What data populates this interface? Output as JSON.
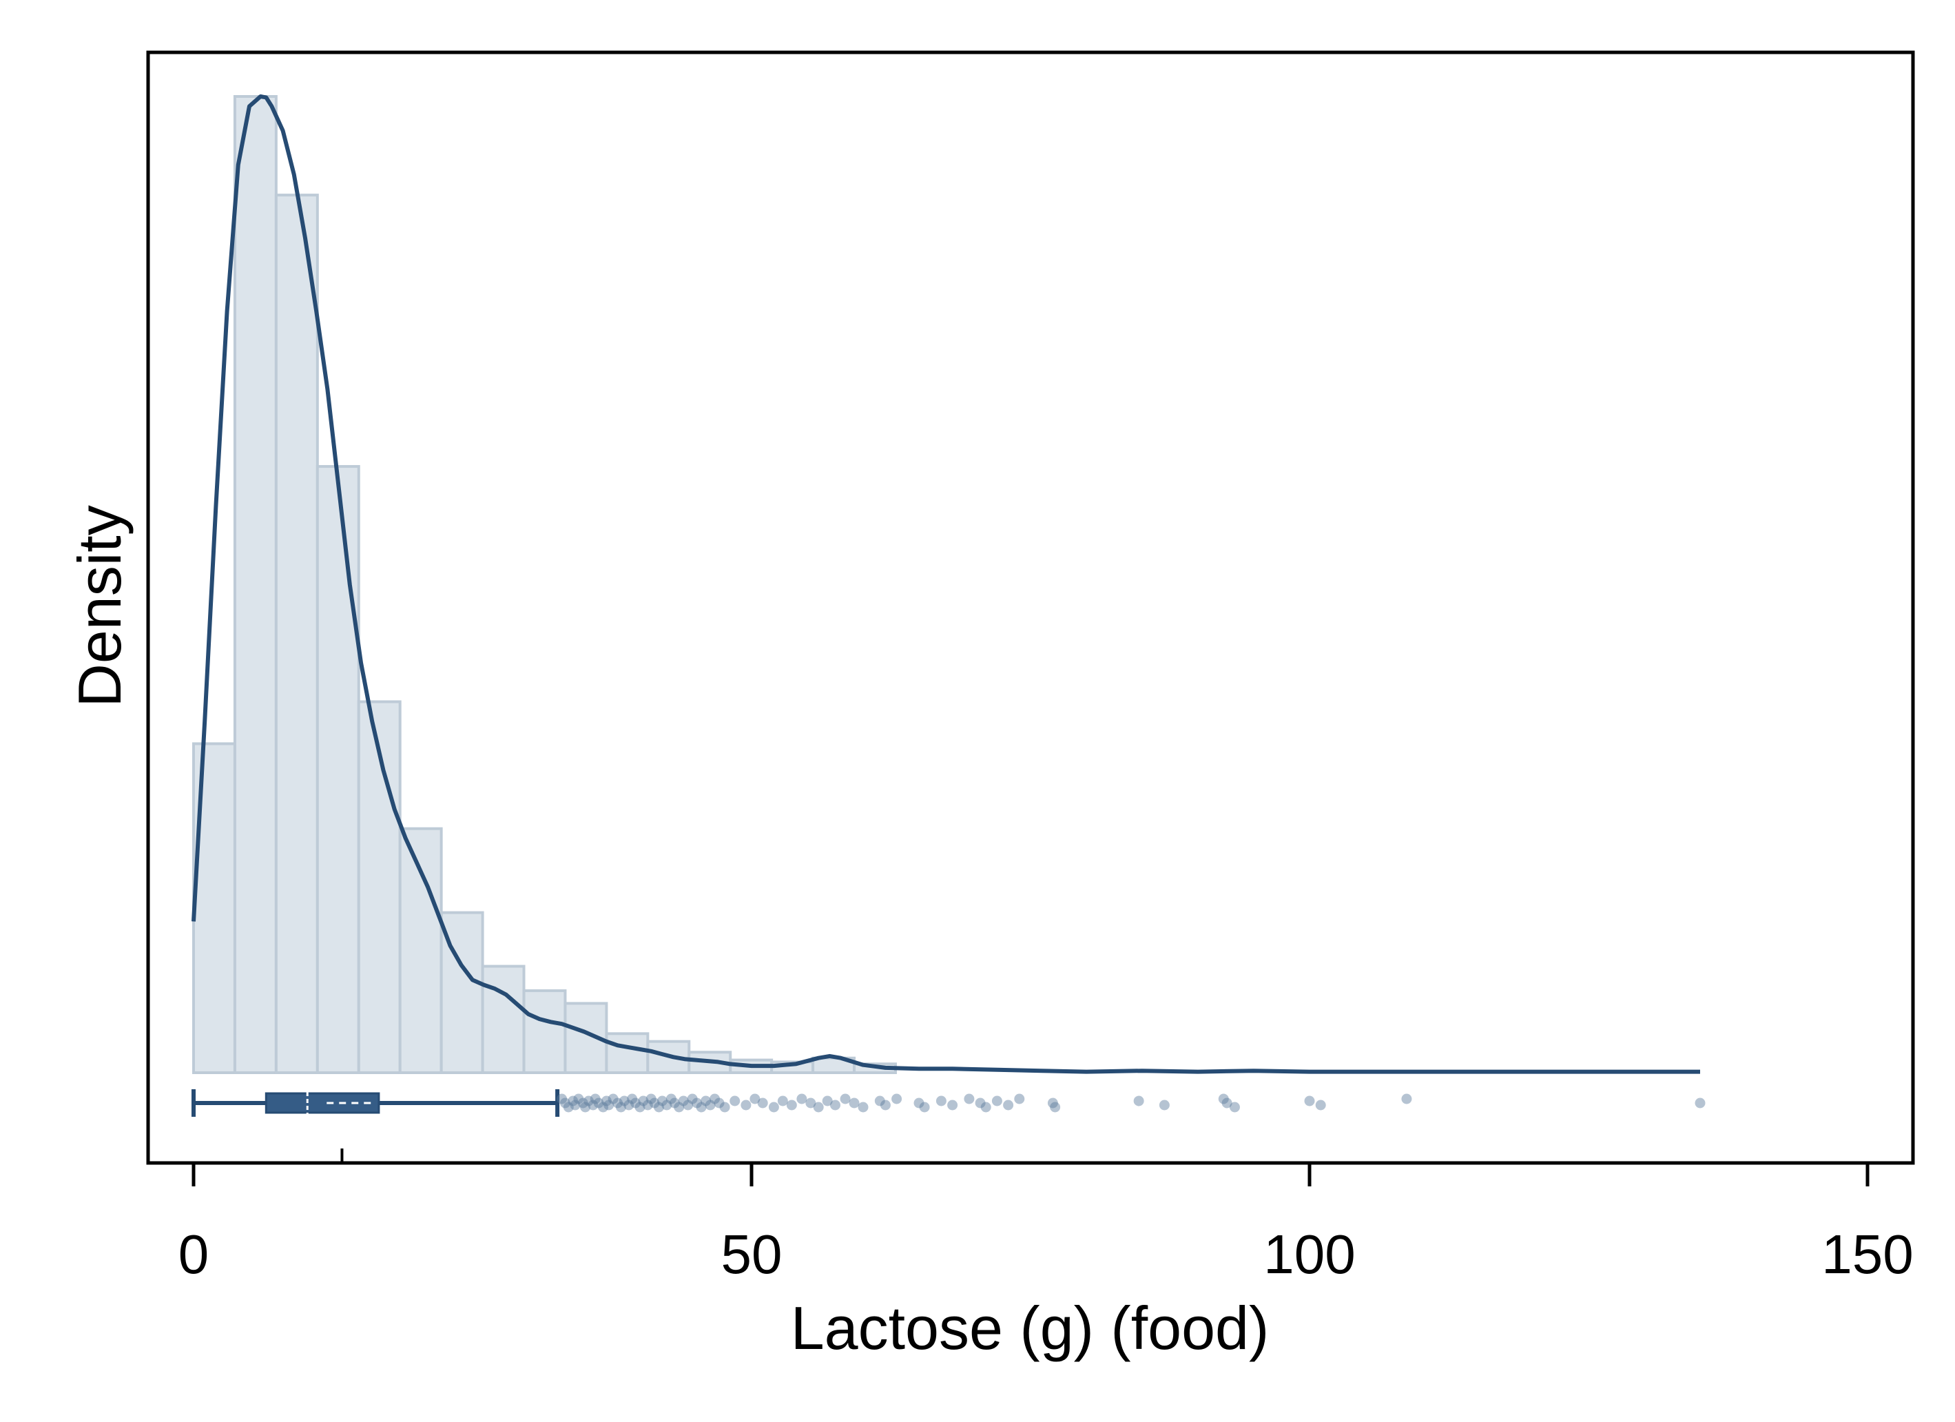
{
  "chart_data": {
    "type": "histogram",
    "title": "",
    "xlabel": "Lactose (g) (food)",
    "ylabel": "Density",
    "xlim": [
      -4,
      154
    ],
    "xticks": [
      0,
      50,
      100,
      150
    ],
    "xtick_labels": [
      "0",
      "50",
      "100",
      "150"
    ],
    "y_ticks_shown": false,
    "grid": false,
    "legend": "none",
    "histogram": {
      "bin_width": 3.7,
      "bin_starts": [
        0,
        3.7,
        7.4,
        11.1,
        14.8,
        18.5,
        22.2,
        25.9,
        29.6,
        33.3,
        37.0,
        40.7,
        44.4,
        48.1,
        51.8,
        55.5,
        59.2
      ],
      "relative_heights": [
        0.337,
        1.0,
        0.899,
        0.621,
        0.38,
        0.25,
        0.164,
        0.109,
        0.084,
        0.071,
        0.04,
        0.032,
        0.021,
        0.013,
        0.011,
        0.015,
        0.009
      ]
    },
    "density_curve": {
      "x": [
        0,
        1,
        2,
        3,
        4,
        5,
        6,
        6.5,
        7,
        8,
        9,
        10,
        11,
        12,
        13,
        14,
        15,
        16,
        17,
        18,
        19,
        20,
        21,
        22,
        23,
        24,
        25,
        26,
        27,
        28,
        29,
        30,
        31,
        32,
        33,
        34,
        35,
        36,
        37,
        38,
        39,
        40,
        41,
        42,
        43,
        44,
        45,
        46,
        47,
        48,
        50,
        52,
        54,
        56,
        57,
        58,
        60,
        62,
        65,
        68,
        72,
        76,
        80,
        85,
        90,
        95,
        100,
        105,
        110,
        115,
        120,
        125,
        130,
        135
      ],
      "y": [
        0.155,
        0.36,
        0.58,
        0.78,
        0.93,
        0.99,
        1.0,
        0.999,
        0.99,
        0.965,
        0.92,
        0.855,
        0.78,
        0.7,
        0.6,
        0.5,
        0.42,
        0.36,
        0.31,
        0.27,
        0.24,
        0.215,
        0.19,
        0.16,
        0.13,
        0.11,
        0.095,
        0.09,
        0.086,
        0.08,
        0.07,
        0.06,
        0.055,
        0.052,
        0.05,
        0.046,
        0.042,
        0.037,
        0.032,
        0.028,
        0.026,
        0.024,
        0.022,
        0.019,
        0.016,
        0.014,
        0.013,
        0.012,
        0.011,
        0.009,
        0.007,
        0.007,
        0.009,
        0.015,
        0.017,
        0.015,
        0.008,
        0.005,
        0.004,
        0.004,
        0.003,
        0.002,
        0.001,
        0.002,
        0.001,
        0.002,
        0.001,
        0.001,
        0.001,
        0.001,
        0.001,
        0.001,
        0.001,
        0.001
      ]
    },
    "boxplot": {
      "whisker_low": 0,
      "q1": 6.5,
      "median": 10.2,
      "mean": 13.3,
      "q3": 16.6,
      "whisker_high": 32.6,
      "outliers": [
        33,
        33.3,
        33.6,
        34,
        34.2,
        34.5,
        34.9,
        35.1,
        35.4,
        35.8,
        36,
        36.3,
        36.7,
        37,
        37.2,
        37.6,
        38,
        38.3,
        38.6,
        39,
        39.3,
        39.6,
        40,
        40.3,
        40.7,
        41,
        41.3,
        41.7,
        42,
        42.4,
        42.8,
        43.1,
        43.5,
        43.9,
        44.3,
        44.7,
        45.1,
        45.5,
        45.9,
        46.3,
        46.7,
        47.1,
        47.6,
        48.5,
        49.5,
        50.3,
        51,
        52,
        52.8,
        53.6,
        54.5,
        55.3,
        56,
        56.8,
        57.5,
        58.4,
        59.2,
        60,
        61.5,
        62,
        63,
        65,
        65.5,
        67,
        68,
        69.5,
        70.5,
        71,
        72,
        73,
        74,
        77,
        77.2,
        84.7,
        87,
        92.3,
        92.6,
        93.3,
        100,
        101,
        108.7,
        135
      ]
    },
    "colors": {
      "line": "#264b73",
      "bar_fill": "#dce4eb",
      "bar_edge": "#becbd7",
      "box_fill": "#355c86",
      "outlier": "#5a7a9c"
    }
  }
}
